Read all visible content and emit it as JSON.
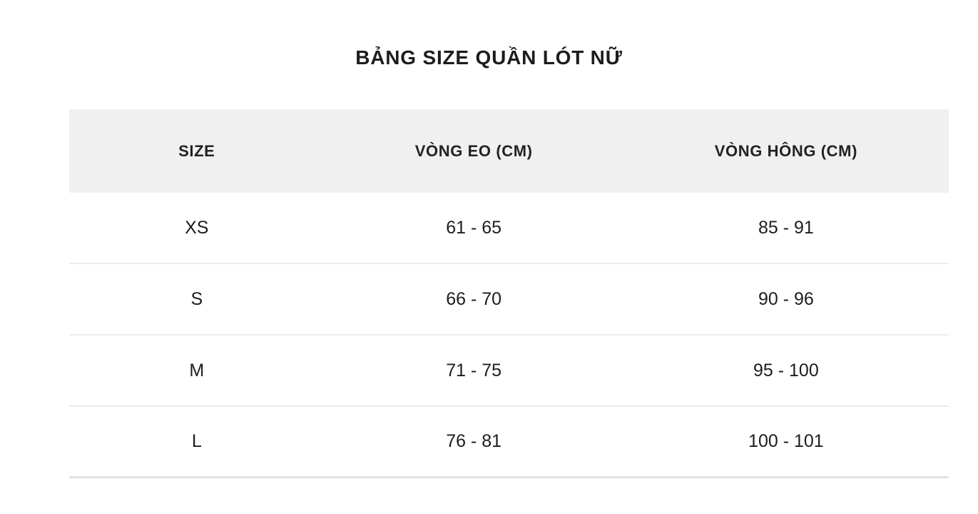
{
  "page": {
    "title": "BẢNG SIZE QUẦN LÓT NỮ"
  },
  "chart_data": {
    "type": "table",
    "title": "BẢNG SIZE QUẦN LÓT NỮ",
    "columns": [
      "SIZE",
      "VÒNG EO (CM)",
      "VÒNG HÔNG (CM)"
    ],
    "rows": [
      [
        "XS",
        "61 - 65",
        "85 - 91"
      ],
      [
        "S",
        "66 - 70",
        "90 - 96"
      ],
      [
        "M",
        "71 - 75",
        "95 - 100"
      ],
      [
        "L",
        "76 - 81",
        "100 - 101"
      ]
    ],
    "units": "cm",
    "layout": {
      "header_background": "#f0f0f0",
      "divider_color": "#ebebeb",
      "text_color": "#1d1d1d",
      "grid": "horizontal-dividers-only",
      "alignment": "center"
    }
  }
}
